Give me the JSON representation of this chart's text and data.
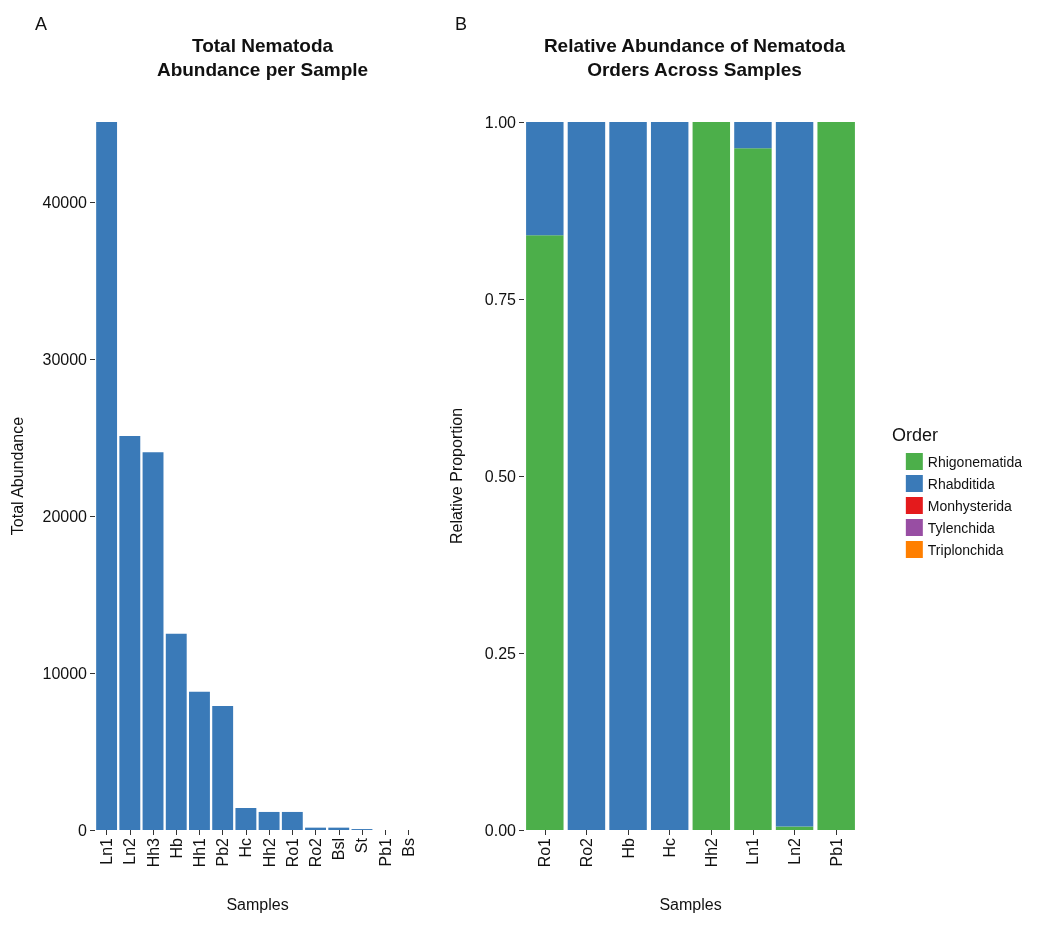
{
  "chart_data": [
    {
      "type": "bar",
      "title": "Total Nematoda\nAbundance per Sample",
      "xlabel": "Samples",
      "ylabel": "Total Abundance",
      "annotations": [
        "A"
      ],
      "categories": [
        "Ln1",
        "Ln2",
        "Hh3",
        "Hb",
        "Hh1",
        "Pb2",
        "Hc",
        "Hh2",
        "Ro1",
        "Ro2",
        "Bsl",
        "St",
        "Pb1",
        "Bs"
      ],
      "values": [
        45100,
        25100,
        24060,
        12500,
        8800,
        7900,
        1400,
        1150,
        1150,
        150,
        150,
        60,
        0,
        0
      ],
      "color": "#3a7ab8",
      "ylim": [
        0,
        45100
      ],
      "yticks": [
        0,
        10000,
        20000,
        30000,
        40000
      ],
      "grid": false,
      "legend": false
    },
    {
      "type": "bar",
      "title": "Relative Abundance of Nematoda\nOrders Across Samples",
      "xlabel": "Samples",
      "ylabel": "Relative Proportion",
      "legend_title": "Order",
      "annotations": [
        "B"
      ],
      "categories": [
        "Ro1",
        "Ro2",
        "Hb",
        "Hc",
        "Hh2",
        "Ln1",
        "Ln2",
        "Pb1"
      ],
      "stacked": true,
      "series": [
        {
          "name": "Rhigonematida",
          "color": "#4caf4a",
          "values": [
            0.84,
            0,
            0,
            0,
            1,
            0.963,
            0.005,
            1
          ]
        },
        {
          "name": "Rhabditida",
          "color": "#3a7ab8",
          "values": [
            0.16,
            1,
            1,
            1,
            0,
            0.037,
            0.995,
            0
          ]
        },
        {
          "name": "Monhysterida",
          "color": "#e41a1c",
          "values": [
            0,
            0,
            0,
            0,
            0,
            0,
            0,
            0
          ]
        },
        {
          "name": "Tylenchida",
          "color": "#984ea3",
          "values": [
            0,
            0,
            0,
            0,
            0,
            0,
            0,
            0
          ]
        },
        {
          "name": "Triplonchida",
          "color": "#ff7f00",
          "values": [
            0,
            0,
            0,
            0,
            0,
            0,
            0,
            0
          ]
        }
      ],
      "ylim": [
        0,
        1
      ],
      "yticks": [
        {
          "value": 0,
          "label": "0.00"
        },
        {
          "value": 0.25,
          "label": "0.25"
        },
        {
          "value": 0.5,
          "label": "0.50"
        },
        {
          "value": 0.75,
          "label": "0.75"
        },
        {
          "value": 1,
          "label": "1.00"
        }
      ],
      "grid": false,
      "legend": "right"
    }
  ]
}
